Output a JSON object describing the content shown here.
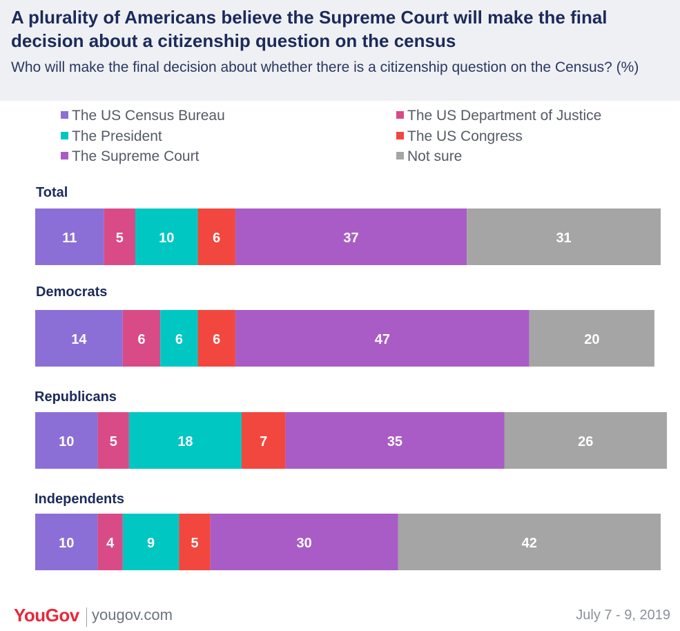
{
  "title": "A plurality of Americans believe the Supreme Court will make the final decision about a citizenship question on the census",
  "subtitle": "Who will make the final decision about whether there is a citizenship question on the Census? (%)",
  "chart_data": {
    "type": "bar",
    "orientation": "horizontal-stacked",
    "categories": [
      "Total",
      "Democrats",
      "Republicans",
      "Independents"
    ],
    "series": [
      {
        "name": "The US Census Bureau",
        "color": "#8c6fd6",
        "values": [
          11,
          14,
          10,
          10
        ]
      },
      {
        "name": "The US Department of Justice",
        "color": "#d94b87",
        "values": [
          5,
          6,
          5,
          4
        ]
      },
      {
        "name": "The President",
        "color": "#00c7c2",
        "values": [
          10,
          6,
          18,
          9
        ]
      },
      {
        "name": "The US Congress",
        "color": "#f2473f",
        "values": [
          6,
          6,
          7,
          5
        ]
      },
      {
        "name": "The Supreme Court",
        "color": "#a95cc6",
        "values": [
          37,
          47,
          35,
          30
        ]
      },
      {
        "name": "Not sure",
        "color": "#a5a5a5",
        "values": [
          31,
          20,
          26,
          42
        ]
      }
    ],
    "legend_placement": "top"
  },
  "footer": {
    "brand": "YouGov",
    "site": "yougov.com",
    "date": "July 7 - 9, 2019"
  }
}
